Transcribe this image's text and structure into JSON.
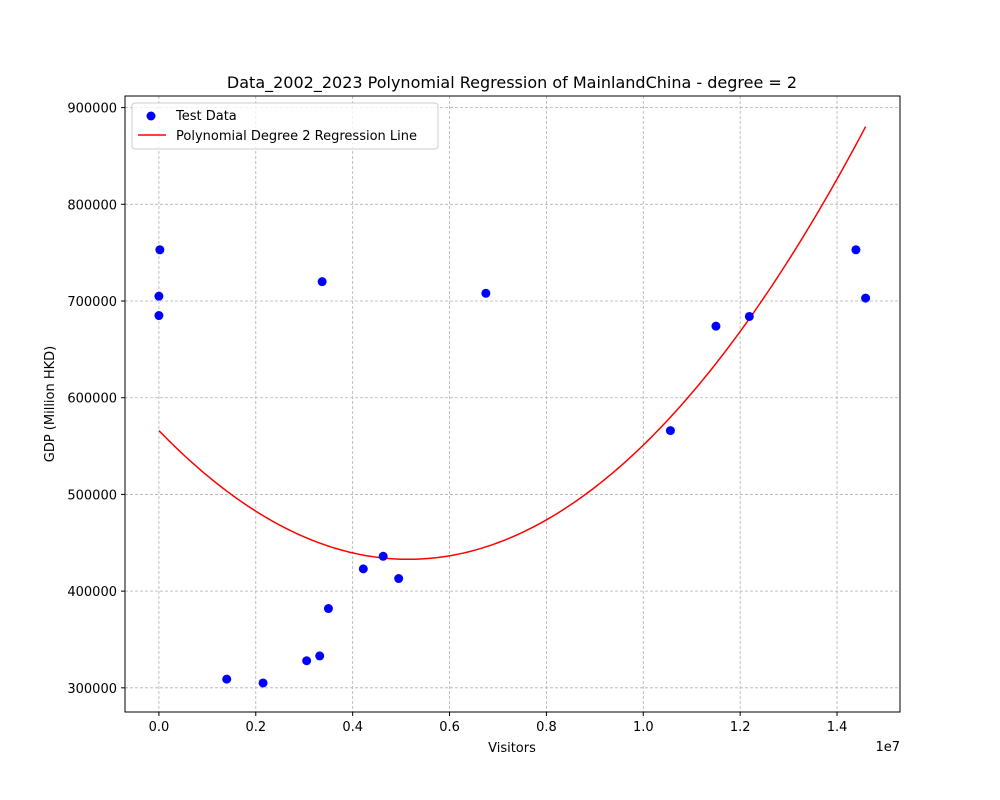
{
  "chart_data": {
    "type": "scatter",
    "title": "Data_2002_2023 Polynomial Regression of MainlandChina - degree = 2",
    "xlabel": "Visitors",
    "ylabel": "GDP (Million HKD)",
    "x_offset_label": "1e7",
    "xlim": [
      -700000,
      15300000
    ],
    "ylim": [
      275000,
      912000
    ],
    "x_ticks": [
      0,
      2000000,
      4000000,
      6000000,
      8000000,
      10000000,
      12000000,
      14000000
    ],
    "x_tick_labels": [
      "0.0",
      "0.2",
      "0.4",
      "0.6",
      "0.8",
      "1.0",
      "1.2",
      "1.4"
    ],
    "y_ticks": [
      300000,
      400000,
      500000,
      600000,
      700000,
      800000,
      900000
    ],
    "y_tick_labels": [
      "300000",
      "400000",
      "500000",
      "600000",
      "700000",
      "800000",
      "900000"
    ],
    "grid": true,
    "legend_position": "top-left",
    "series": [
      {
        "name": "Test Data",
        "kind": "scatter",
        "color": "#0000ff",
        "points": [
          [
            20000,
            753000
          ],
          [
            0,
            705000
          ],
          [
            0,
            685000
          ],
          [
            1400000,
            309000
          ],
          [
            2150000,
            305000
          ],
          [
            3050000,
            328000
          ],
          [
            3320000,
            333000
          ],
          [
            3370000,
            720000
          ],
          [
            3500000,
            382000
          ],
          [
            4220000,
            423000
          ],
          [
            4630000,
            436000
          ],
          [
            4950000,
            413000
          ],
          [
            6750000,
            708000
          ],
          [
            10560000,
            566000
          ],
          [
            11500000,
            674000
          ],
          [
            12190000,
            684000
          ],
          [
            14390000,
            753000
          ],
          [
            14590000,
            703000
          ]
        ]
      },
      {
        "name": "Polynomial Degree 2 Regression Line",
        "kind": "line",
        "color": "#ff0000",
        "coefficients": [
          566000,
          -0.0517,
          5.02e-09
        ],
        "x_range": [
          0,
          14590000
        ]
      }
    ]
  }
}
